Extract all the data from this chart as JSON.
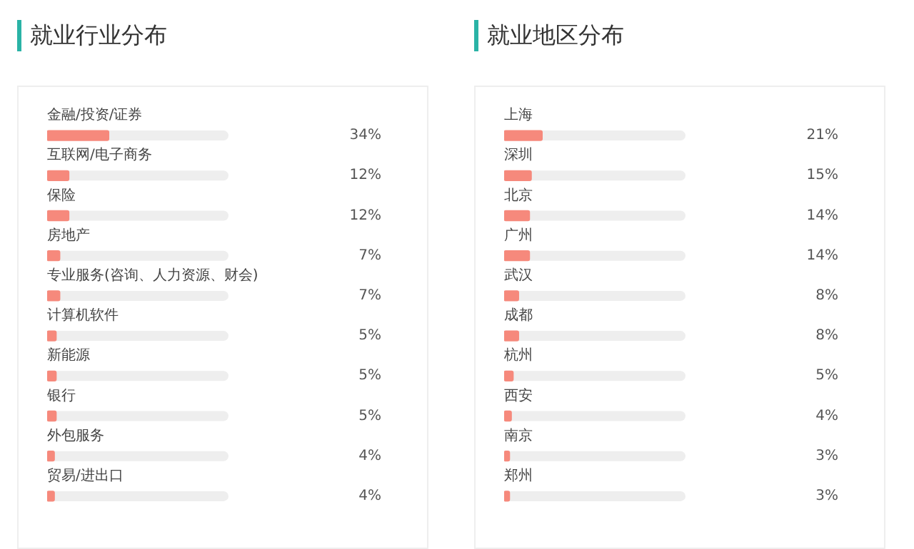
{
  "chart_data": [
    {
      "type": "bar",
      "orientation": "horizontal",
      "title": "就业行业分布",
      "categories": [
        "金融/投资/证券",
        "互联网/电子商务",
        "保险",
        "房地产",
        "专业服务(咨询、人力资源、财会)",
        "计算机软件",
        "新能源",
        "银行",
        "外包服务",
        "贸易/进出口"
      ],
      "values": [
        34,
        12,
        12,
        7,
        7,
        5,
        5,
        5,
        4,
        4
      ],
      "value_labels": [
        "34%",
        "12%",
        "12%",
        "7%",
        "7%",
        "5%",
        "5%",
        "5%",
        "4%",
        "4%"
      ],
      "color": "#f6897c",
      "xlim": [
        0,
        100
      ],
      "tick_labels": "y"
    },
    {
      "type": "bar",
      "orientation": "horizontal",
      "title": "就业地区分布",
      "categories": [
        "上海",
        "深圳",
        "北京",
        "广州",
        "武汉",
        "成都",
        "杭州",
        "西安",
        "南京",
        "郑州"
      ],
      "values": [
        21,
        15,
        14,
        14,
        8,
        8,
        5,
        4,
        3,
        3
      ],
      "value_labels": [
        "21%",
        "15%",
        "14%",
        "14%",
        "8%",
        "8%",
        "5%",
        "4%",
        "3%",
        "3%"
      ],
      "color": "#f6897c",
      "xlim": [
        0,
        100
      ],
      "tick_labels": "y"
    }
  ]
}
